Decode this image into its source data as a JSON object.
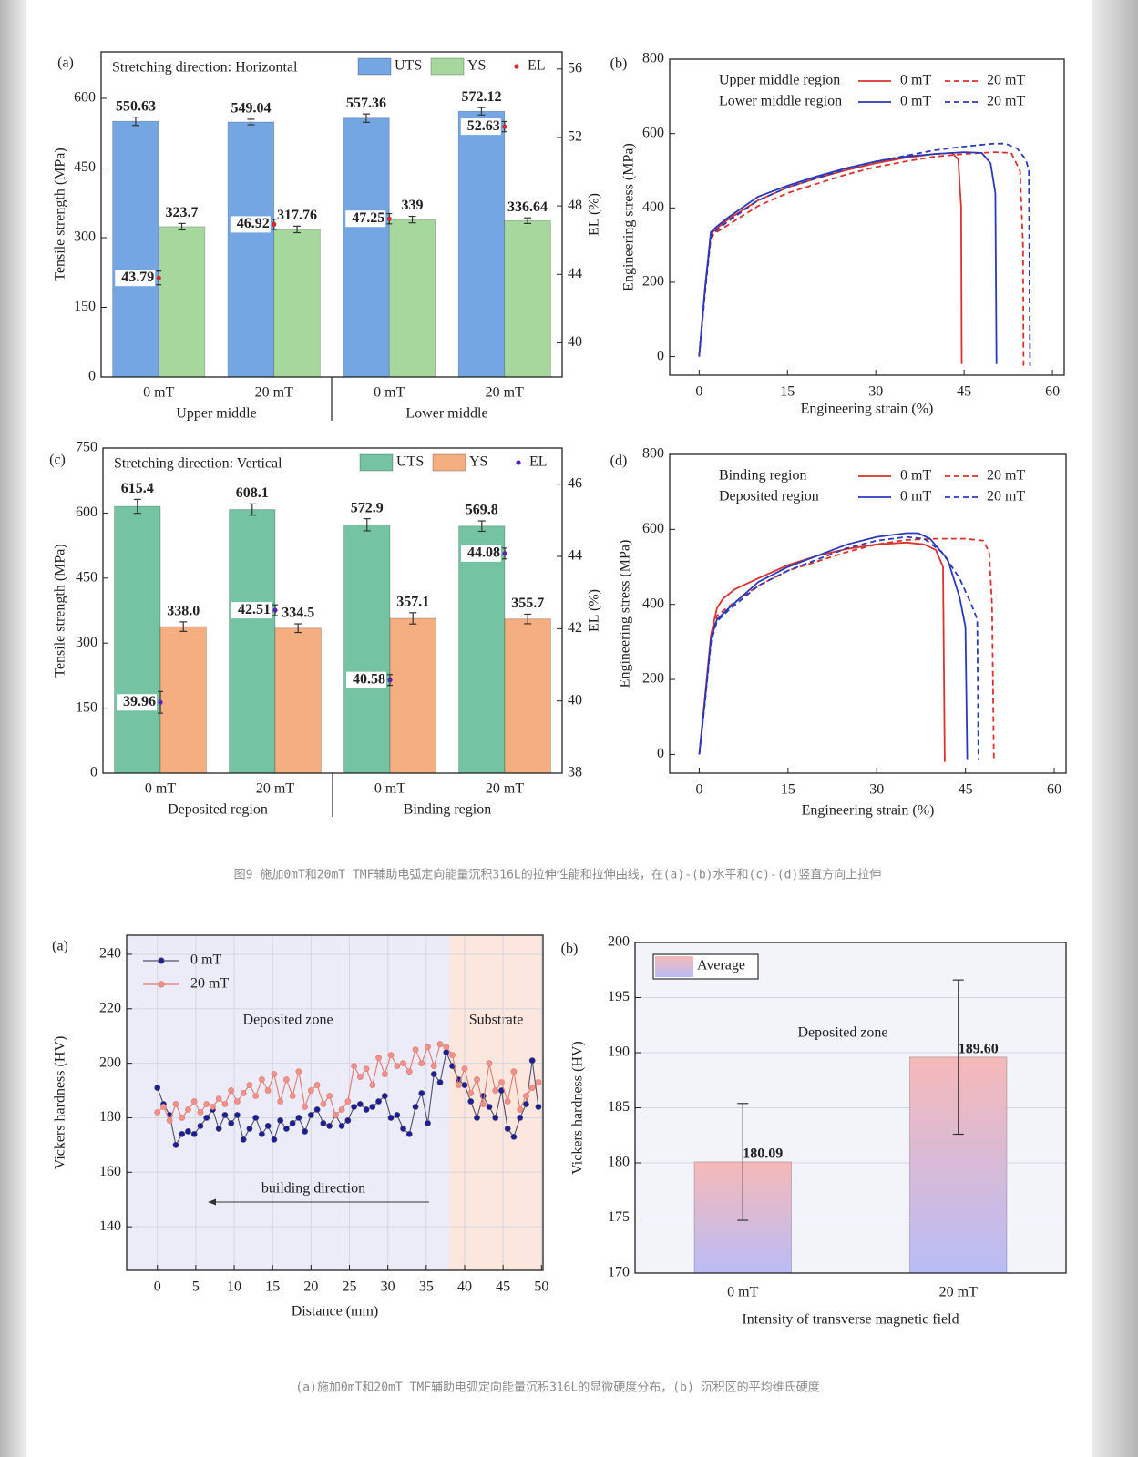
{
  "chart_data": [
    {
      "type": "bar",
      "panel": "(a)",
      "annotation": "Stretching direction: Horizontal",
      "categories": [
        "0 mT",
        "20 mT",
        "0 mT",
        "20 mT"
      ],
      "category_groups": [
        "Upper middle",
        "Lower middle"
      ],
      "y_label": "Tensile strength (MPa)",
      "y2_label": "EL (%)",
      "ylim": [
        0,
        700
      ],
      "yticks": [
        0,
        150,
        300,
        450,
        600
      ],
      "y2lim": [
        38,
        57
      ],
      "y2ticks": [
        40,
        44,
        48,
        52,
        56
      ],
      "series": [
        {
          "name": "UTS",
          "color": "#74a6e4",
          "label_color": "#1f4e8c",
          "values": [
            550.63,
            549.04,
            557.36,
            572.12
          ],
          "errors": [
            9,
            6,
            9,
            8
          ]
        },
        {
          "name": "YS",
          "color": "#a6d89e",
          "label_color": "#3b7d1f",
          "values": [
            323.7,
            317.76,
            339,
            336.64
          ],
          "errors": [
            7,
            7,
            7,
            6
          ]
        },
        {
          "name": "EL",
          "axis": "y2",
          "color": "#d42a2a",
          "label_color": "#c0141e",
          "values": [
            43.79,
            46.92,
            47.25,
            52.63
          ],
          "errors": [
            0.4,
            0.3,
            0.3,
            0.3
          ]
        }
      ]
    },
    {
      "type": "line",
      "panel": "(b)",
      "x_label": "Engineering strain (%)",
      "y_label": "Engineering stress (MPa)",
      "xlim": [
        -5,
        62
      ],
      "xticks": [
        0,
        15,
        30,
        45,
        60
      ],
      "ylim": [
        -50,
        800
      ],
      "yticks": [
        0,
        200,
        400,
        600,
        800
      ],
      "legend_groups": [
        "Upper middle region",
        "Lower middle region"
      ],
      "series": [
        {
          "name": "0 mT",
          "color": "#d8332f",
          "dashed": false,
          "x": [
            0,
            1,
            2,
            3,
            5,
            10,
            15,
            20,
            25,
            30,
            35,
            40,
            43,
            44,
            44.5,
            44.6
          ],
          "values": [
            0,
            180,
            330,
            345,
            370,
            420,
            455,
            480,
            502,
            520,
            535,
            545,
            548,
            530,
            400,
            -20
          ]
        },
        {
          "name": "20 mT",
          "color": "#d8332f",
          "dashed": true,
          "x": [
            0,
            1,
            2,
            3,
            5,
            10,
            15,
            20,
            25,
            30,
            35,
            40,
            45,
            50,
            53,
            54.5,
            55,
            55.1
          ],
          "values": [
            0,
            170,
            320,
            335,
            355,
            405,
            440,
            465,
            490,
            510,
            525,
            538,
            545,
            550,
            548,
            500,
            300,
            -25
          ]
        },
        {
          "name": "0 mT",
          "color": "#2b3ab8",
          "dashed": false,
          "x": [
            0,
            1,
            2,
            3,
            5,
            10,
            15,
            20,
            25,
            30,
            35,
            40,
            45,
            48,
            49.5,
            50.3,
            50.5
          ],
          "values": [
            0,
            185,
            335,
            350,
            375,
            430,
            460,
            485,
            507,
            525,
            538,
            545,
            550,
            548,
            520,
            440,
            -20
          ]
        },
        {
          "name": "20 mT",
          "color": "#2b3ab8",
          "dashed": true,
          "x": [
            0,
            1,
            2,
            3,
            5,
            10,
            15,
            20,
            25,
            30,
            35,
            40,
            45,
            50,
            52,
            54,
            55.5,
            56,
            56.2
          ],
          "values": [
            0,
            175,
            325,
            340,
            365,
            420,
            455,
            480,
            505,
            525,
            540,
            555,
            565,
            573,
            573,
            560,
            530,
            500,
            -25
          ]
        }
      ]
    },
    {
      "type": "bar",
      "panel": "(c)",
      "annotation": "Stretching direction: Vertical",
      "categories": [
        "0 mT",
        "20 mT",
        "0 mT",
        "20 mT"
      ],
      "category_groups": [
        "Deposited region",
        "Binding region"
      ],
      "y_label": "Tensile strength (MPa)",
      "y2_label": "EL (%)",
      "ylim": [
        0,
        750
      ],
      "yticks": [
        0,
        150,
        300,
        450,
        600,
        750
      ],
      "y2lim": [
        38,
        47
      ],
      "y2ticks": [
        38,
        40,
        42,
        44,
        46
      ],
      "series": [
        {
          "name": "UTS",
          "color": "#74c4a4",
          "label_color": "#1f7a5a",
          "values": [
            615.4,
            608.1,
            572.9,
            569.8
          ],
          "errors": [
            16,
            13,
            14,
            12
          ]
        },
        {
          "name": "YS",
          "color": "#f4ae80",
          "label_color": "#9a5a1a",
          "values": [
            338.0,
            334.5,
            357.1,
            355.7
          ],
          "value_labels": [
            "338.0",
            "334.5",
            "357.1",
            "355.7"
          ],
          "errors": [
            11,
            10,
            13,
            11
          ]
        },
        {
          "name": "EL",
          "axis": "y2",
          "color": "#5a1fb0",
          "label_color": "#5a1fb0",
          "values": [
            39.96,
            42.51,
            40.58,
            44.08
          ],
          "errors": [
            0.3,
            0.15,
            0.15,
            0.15
          ]
        }
      ]
    },
    {
      "type": "line",
      "panel": "(d)",
      "x_label": "Engineering strain (%)",
      "y_label": "Engineering stress (MPa)",
      "xlim": [
        -5,
        62
      ],
      "xticks": [
        0,
        15,
        30,
        45,
        60
      ],
      "ylim": [
        -50,
        800
      ],
      "yticks": [
        0,
        200,
        400,
        600,
        800
      ],
      "legend_groups": [
        "Binding region",
        "Deposited region"
      ],
      "series": [
        {
          "name": "0 mT",
          "color": "#d8332f",
          "dashed": false,
          "x": [
            0,
            1,
            2,
            3,
            4,
            6,
            10,
            15,
            20,
            25,
            30,
            35,
            38,
            40,
            41.2,
            41.5
          ],
          "values": [
            0,
            160,
            320,
            390,
            415,
            440,
            470,
            505,
            530,
            548,
            560,
            565,
            560,
            545,
            500,
            -20
          ]
        },
        {
          "name": "20 mT",
          "color": "#d8332f",
          "dashed": true,
          "x": [
            0,
            1,
            2,
            3,
            5,
            10,
            15,
            20,
            25,
            30,
            35,
            40,
            45,
            48,
            49,
            49.5,
            49.8
          ],
          "values": [
            0,
            150,
            310,
            370,
            395,
            450,
            490,
            515,
            540,
            560,
            572,
            575,
            575,
            570,
            540,
            400,
            -15
          ]
        },
        {
          "name": "0 mT",
          "color": "#2b3ab8",
          "dashed": false,
          "x": [
            0,
            1,
            2,
            3,
            5,
            10,
            15,
            20,
            25,
            30,
            35,
            37,
            39,
            42,
            44,
            45,
            45.3
          ],
          "values": [
            0,
            150,
            310,
            360,
            390,
            460,
            500,
            530,
            560,
            580,
            590,
            590,
            575,
            520,
            420,
            340,
            -15
          ]
        },
        {
          "name": "20 mT",
          "color": "#2b3ab8",
          "dashed": true,
          "x": [
            0,
            1,
            2,
            3,
            5,
            10,
            15,
            20,
            25,
            30,
            35,
            38,
            41,
            44,
            46,
            47,
            47.2
          ],
          "values": [
            0,
            145,
            300,
            355,
            385,
            450,
            490,
            520,
            550,
            570,
            580,
            575,
            540,
            470,
            400,
            360,
            -15
          ]
        }
      ]
    },
    {
      "type": "line",
      "panel": "(a)",
      "annotation": "building direction",
      "x_label": "Distance (mm)",
      "y_label": "Vickers hardness (HV)",
      "xlim": [
        -4,
        50.2
      ],
      "xticks": [
        0,
        5,
        10,
        15,
        20,
        25,
        30,
        35,
        40,
        45,
        50
      ],
      "ylim": [
        124,
        247
      ],
      "yticks": [
        140,
        160,
        180,
        200,
        220,
        240
      ],
      "grid": true,
      "shaded_spans": [
        {
          "label": "Deposited zone",
          "xlim": [
            -4,
            38
          ],
          "color": "#ececf8"
        },
        {
          "label": "Substrate",
          "xlim": [
            38,
            50.2
          ],
          "color": "#fbe7de"
        }
      ],
      "x": [
        0,
        0.8,
        1.6,
        2.4,
        3.2,
        4,
        4.8,
        5.6,
        6.4,
        7.2,
        8,
        8.8,
        9.6,
        10.4,
        11.2,
        12,
        12.8,
        13.6,
        14.4,
        15.2,
        16,
        16.8,
        17.6,
        18.4,
        19.2,
        20,
        20.8,
        21.6,
        22.4,
        23.2,
        24,
        24.8,
        25.6,
        26.4,
        27.2,
        28,
        28.8,
        29.6,
        30.4,
        31.2,
        32,
        32.8,
        33.6,
        34.4,
        35.2,
        36,
        36.8,
        37.6,
        38.4,
        39.2,
        40,
        40.8,
        41.6,
        42.4,
        43.2,
        44,
        44.8,
        45.6,
        46.4,
        47.2,
        48,
        48.8,
        49.6
      ],
      "series": [
        {
          "name": "0 mT",
          "color": "#50506e",
          "marker_color": "#1d1d95",
          "values": [
            191,
            185,
            181,
            170,
            174,
            175,
            174,
            177,
            180,
            183,
            176,
            181,
            178,
            181,
            172,
            176,
            180,
            174,
            177,
            172,
            179,
            176,
            178,
            180,
            175,
            181,
            183,
            178,
            177,
            181,
            177,
            179,
            184,
            185,
            183,
            184,
            186,
            188,
            180,
            181,
            176,
            174,
            184,
            189,
            178,
            196,
            193,
            204,
            199,
            194,
            192,
            186,
            180,
            188,
            184,
            180,
            190,
            176,
            173,
            180,
            185,
            201,
            184
          ]
        },
        {
          "name": "20 mT",
          "color": "#e07a70",
          "marker_color": "#f0928a",
          "values": [
            182,
            184,
            179,
            185,
            180,
            183,
            186,
            182,
            185,
            184,
            187,
            185,
            190,
            186,
            189,
            192,
            188,
            194,
            190,
            196,
            186,
            194,
            188,
            197,
            184,
            190,
            192,
            185,
            188,
            181,
            183,
            186,
            199,
            195,
            198,
            192,
            202,
            196,
            203,
            199,
            200,
            197,
            205,
            200,
            206,
            199,
            207,
            206,
            203,
            192,
            198,
            189,
            194,
            185,
            200,
            190,
            193,
            186,
            197,
            183,
            188,
            191,
            193
          ]
        }
      ]
    },
    {
      "type": "bar",
      "panel": "(b)",
      "annotation": "Deposited zone",
      "x_label": "Intensity of transverse magnetic field",
      "y_label": "Vickers hardness (HV)",
      "categories": [
        "0 mT",
        "20 mT"
      ],
      "ylim": [
        170,
        200
      ],
      "yticks": [
        170,
        175,
        180,
        185,
        190,
        195,
        200
      ],
      "grid": true,
      "background": "#f3f3fa",
      "series": [
        {
          "name": "Average",
          "gradient": [
            "#f6b9b9",
            "#b9bcf6"
          ],
          "label_color": "#111",
          "values": [
            180.09,
            189.6
          ],
          "value_labels": [
            "180.09",
            "189.60"
          ],
          "errors": [
            5.3,
            7.0
          ]
        }
      ]
    }
  ],
  "captions": [
    "图9 施加0mT和20mT TMF辅助电弧定向能量沉积316L的拉伸性能和拉伸曲线，在(a)-(b)水平和(c)-(d)竖直方向上拉伸",
    "(a)施加0mT和20mT TMF辅助电弧定向能量沉积316L的显微硬度分布，(b) 沉积区的平均维氏硬度"
  ]
}
